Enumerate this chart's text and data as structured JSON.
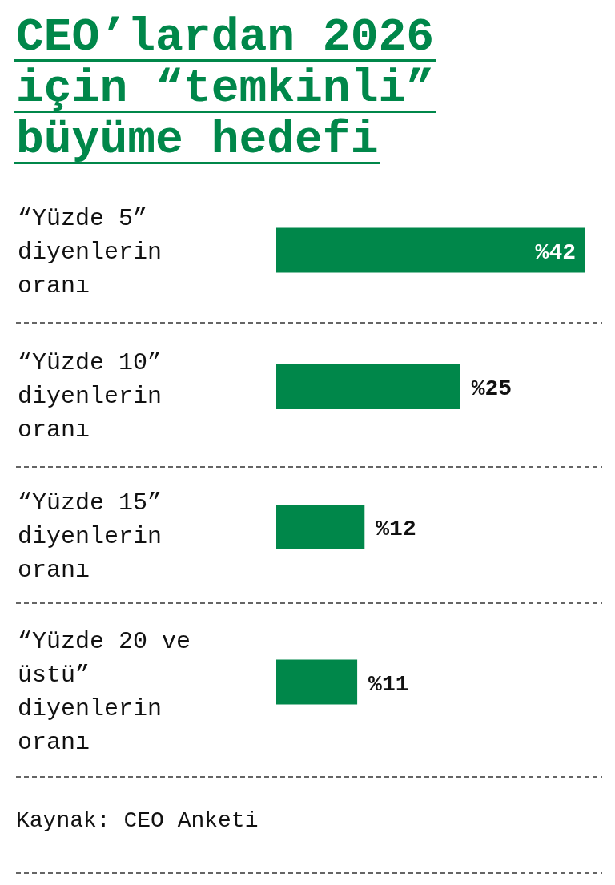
{
  "chart_data": {
    "type": "bar",
    "orientation": "horizontal",
    "title": "CEO’lardan 2026 için “temkinli” büyüme hedefi",
    "categories": [
      "“Yüzde 5” diyenlerin oranı",
      "“Yüzde 10” diyenlerin oranı",
      "“Yüzde 15” diyenlerin oranı",
      "“Yüzde 20 ve üstü” diyenlerin oranı"
    ],
    "values": [
      42,
      25,
      12,
      11
    ],
    "value_labels": [
      "%42",
      "%25",
      "%12",
      "%11"
    ],
    "color": "#00874a",
    "annotations": [
      "Kaynak: CEO Anketi"
    ]
  }
}
